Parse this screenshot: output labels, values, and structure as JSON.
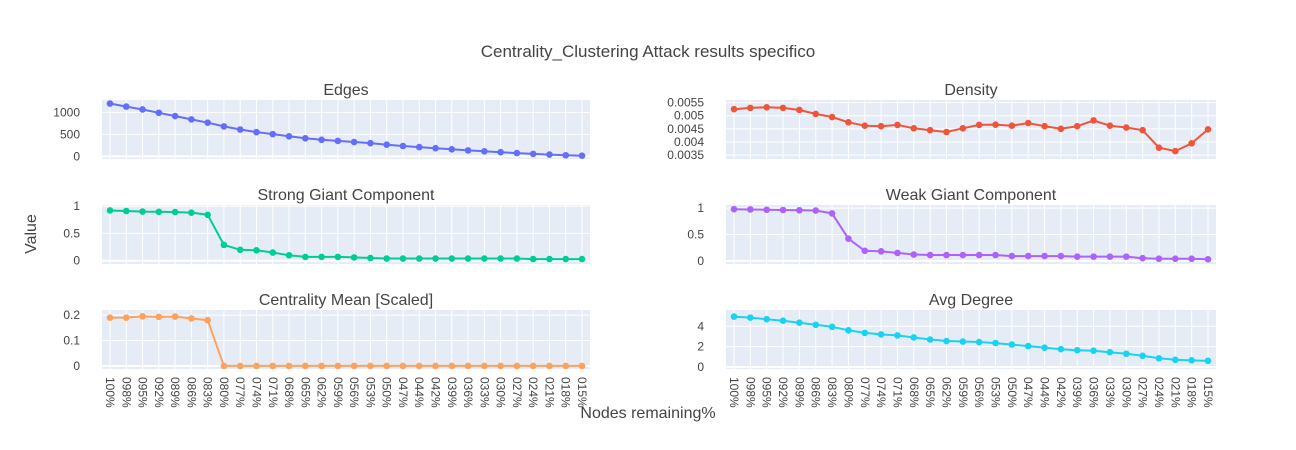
{
  "figure": {
    "title": "Centrality_Clustering Attack results specifico",
    "xlabel": "Nodes remaining%",
    "ylabel": "Value"
  },
  "chart_data": {
    "type": "line",
    "x_categories": [
      "100%",
      "098%",
      "095%",
      "092%",
      "089%",
      "086%",
      "083%",
      "080%",
      "077%",
      "074%",
      "071%",
      "068%",
      "065%",
      "062%",
      "059%",
      "056%",
      "053%",
      "050%",
      "047%",
      "044%",
      "042%",
      "039%",
      "036%",
      "033%",
      "030%",
      "027%",
      "024%",
      "021%",
      "018%",
      "015%"
    ],
    "panels": [
      {
        "title": "Edges",
        "color": "#636efa",
        "ylim": [
          -60,
          1280
        ],
        "yticks": [
          0,
          500,
          1000
        ],
        "ytick_labels": [
          "0",
          "500",
          "1000"
        ],
        "values": [
          1200,
          1130,
          1065,
          990,
          915,
          840,
          765,
          680,
          610,
          550,
          505,
          455,
          410,
          375,
          350,
          325,
          300,
          265,
          235,
          210,
          185,
          160,
          135,
          115,
          95,
          75,
          55,
          40,
          25,
          15
        ]
      },
      {
        "title": "Density",
        "color": "#ef553b",
        "ylim": [
          0.00335,
          0.0056
        ],
        "yticks": [
          0.0035,
          0.004,
          0.0045,
          0.005,
          0.0055
        ],
        "ytick_labels": [
          "0.0035",
          "0.004",
          "0.0045",
          "0.005",
          "0.0055"
        ],
        "values": [
          0.00525,
          0.0053,
          0.00532,
          0.0053,
          0.00522,
          0.00507,
          0.00495,
          0.00475,
          0.00462,
          0.0046,
          0.00465,
          0.00452,
          0.00445,
          0.00438,
          0.00452,
          0.00465,
          0.00466,
          0.00462,
          0.00472,
          0.0046,
          0.0045,
          0.0046,
          0.00482,
          0.00462,
          0.00455,
          0.00445,
          0.00378,
          0.00365,
          0.00395,
          0.00448
        ]
      },
      {
        "title": "Strong Giant Component",
        "color": "#00cc96",
        "ylim": [
          -0.06,
          1.02
        ],
        "yticks": [
          0,
          0.5,
          1
        ],
        "ytick_labels": [
          "0",
          "0.5",
          "1"
        ],
        "values": [
          0.92,
          0.91,
          0.9,
          0.895,
          0.89,
          0.88,
          0.84,
          0.29,
          0.2,
          0.19,
          0.15,
          0.1,
          0.07,
          0.07,
          0.07,
          0.06,
          0.05,
          0.04,
          0.04,
          0.04,
          0.04,
          0.04,
          0.04,
          0.04,
          0.04,
          0.04,
          0.03,
          0.03,
          0.03,
          0.03
        ]
      },
      {
        "title": "Weak Giant Component",
        "color": "#ab63fa",
        "ylim": [
          -0.06,
          1.06
        ],
        "yticks": [
          0,
          0.5,
          1
        ],
        "ytick_labels": [
          "0",
          "0.5",
          "1"
        ],
        "values": [
          0.98,
          0.975,
          0.97,
          0.965,
          0.96,
          0.955,
          0.9,
          0.42,
          0.19,
          0.18,
          0.15,
          0.12,
          0.11,
          0.11,
          0.11,
          0.11,
          0.11,
          0.09,
          0.09,
          0.09,
          0.09,
          0.08,
          0.08,
          0.08,
          0.08,
          0.05,
          0.04,
          0.04,
          0.04,
          0.03
        ]
      },
      {
        "title": "Centrality Mean [Scaled]",
        "color": "#ffa15a",
        "ylim": [
          -0.012,
          0.22
        ],
        "yticks": [
          0,
          0.1,
          0.2
        ],
        "ytick_labels": [
          "0",
          "0.1",
          "0.2"
        ],
        "values": [
          0.19,
          0.19,
          0.195,
          0.193,
          0.194,
          0.187,
          0.18,
          0.0,
          0.0,
          0.0,
          0.0,
          0.0,
          0.0,
          0.0,
          0.0,
          0.0,
          0.0,
          0.0,
          0.0,
          0.0,
          0.0,
          0.0,
          0.0,
          0.0,
          0.0,
          0.0,
          0.0,
          0.0,
          0.0,
          0.0
        ]
      },
      {
        "title": "Avg Degree",
        "color": "#19d3f3",
        "ylim": [
          -0.2,
          5.6
        ],
        "yticks": [
          0,
          2,
          4
        ],
        "ytick_labels": [
          "0",
          "2",
          "4"
        ],
        "values": [
          4.95,
          4.85,
          4.7,
          4.55,
          4.35,
          4.15,
          3.95,
          3.6,
          3.35,
          3.2,
          3.1,
          2.9,
          2.7,
          2.55,
          2.5,
          2.45,
          2.35,
          2.2,
          2.05,
          1.9,
          1.75,
          1.65,
          1.6,
          1.45,
          1.3,
          1.1,
          0.85,
          0.7,
          0.65,
          0.6
        ]
      }
    ]
  }
}
